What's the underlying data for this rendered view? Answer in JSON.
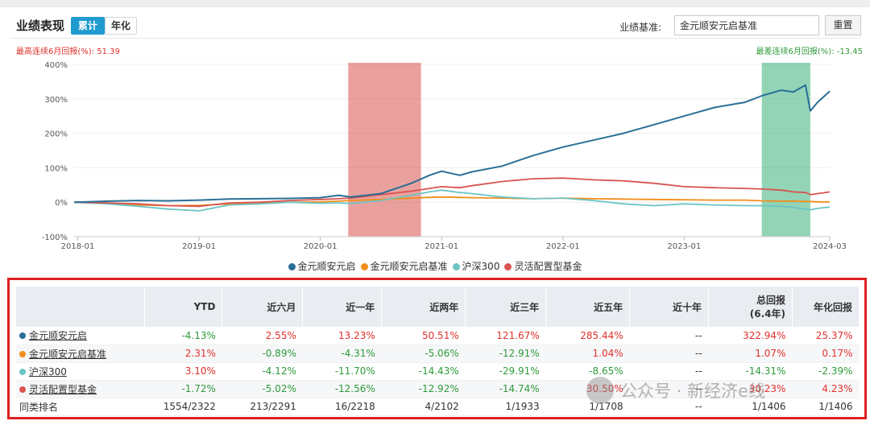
{
  "header": {
    "title": "业绩表现",
    "tab_cumulative": "累计",
    "tab_annualized": "年化",
    "benchmark_label": "业绩基准:",
    "benchmark_value": "金元顺安元启基准",
    "reset_label": "重置"
  },
  "stats": {
    "max_consecutive": "最高连续6月回报(%): 51.39",
    "min_consecutive": "最差连续6月回报(%): -13.45"
  },
  "colors": {
    "fund": "#2a6f97",
    "benchmark": "#f28e1c",
    "csi300": "#6cc4c4",
    "peer": "#d9534f",
    "highlight_red": "#d9534f",
    "highlight_green": "#3ab07a"
  },
  "chart_data": {
    "type": "line",
    "ylim": [
      -100,
      400
    ],
    "yticks": [
      "400%",
      "300%",
      "200%",
      "100%",
      "0%",
      "-100%"
    ],
    "ytick_values": [
      400,
      300,
      200,
      100,
      0,
      -100
    ],
    "xticks": [
      "2018-01",
      "2019-01",
      "2020-01",
      "2021-01",
      "2022-01",
      "2023-01",
      "2024-03"
    ],
    "xtick_values": [
      2018.0,
      2019.0,
      2020.0,
      2021.0,
      2022.0,
      2023.0,
      2024.2
    ],
    "x_range": [
      2017.97,
      2024.2
    ],
    "highlight_bands": [
      {
        "from": 2020.23,
        "to": 2020.83,
        "color": "red"
      },
      {
        "from": 2023.64,
        "to": 2024.04,
        "color": "green"
      }
    ],
    "x": [
      2017.97,
      2018.25,
      2018.5,
      2018.75,
      2019.0,
      2019.25,
      2019.5,
      2019.75,
      2020.0,
      2020.15,
      2020.25,
      2020.5,
      2020.75,
      2020.9,
      2021.0,
      2021.15,
      2021.25,
      2021.5,
      2021.75,
      2022.0,
      2022.25,
      2022.5,
      2022.75,
      2023.0,
      2023.25,
      2023.5,
      2023.65,
      2023.8,
      2023.9,
      2024.0,
      2024.04,
      2024.1,
      2024.2
    ],
    "series": [
      {
        "name": "金元顺安元启",
        "color": "#2a6f97",
        "values": [
          0,
          3,
          5,
          4,
          6,
          9,
          10,
          11,
          13,
          20,
          15,
          25,
          55,
          78,
          90,
          78,
          88,
          105,
          135,
          160,
          180,
          200,
          225,
          250,
          275,
          290,
          310,
          325,
          320,
          340,
          265,
          290,
          322
        ]
      },
      {
        "name": "金元顺安元启基准",
        "color": "#f28e1c",
        "values": [
          0,
          -3,
          -8,
          -10,
          -9,
          -5,
          -3,
          0,
          1,
          3,
          5,
          8,
          12,
          14,
          15,
          14,
          13,
          12,
          10,
          12,
          10,
          9,
          8,
          7,
          6,
          6,
          4,
          3,
          3,
          2,
          2,
          1,
          1
        ]
      },
      {
        "name": "沪深300",
        "color": "#6cc4c4",
        "values": [
          0,
          -5,
          -12,
          -20,
          -25,
          -8,
          -5,
          0,
          -3,
          -2,
          -4,
          5,
          20,
          30,
          35,
          28,
          25,
          15,
          10,
          12,
          5,
          -5,
          -10,
          -5,
          -8,
          -10,
          -10,
          -12,
          -15,
          -20,
          -22,
          -18,
          -14
        ]
      },
      {
        "name": "灵活配置型基金",
        "color": "#d9534f",
        "values": [
          0,
          -2,
          -5,
          -10,
          -12,
          -2,
          0,
          5,
          8,
          10,
          12,
          22,
          32,
          40,
          45,
          42,
          48,
          60,
          68,
          70,
          65,
          62,
          55,
          45,
          42,
          40,
          38,
          35,
          30,
          28,
          22,
          25,
          30
        ]
      }
    ]
  },
  "legend": [
    "金元顺安元启",
    "金元顺安元启基准",
    "沪深300",
    "灵活配置型基金"
  ],
  "table": {
    "columns": [
      "",
      "YTD",
      "近六月",
      "近一年",
      "近两年",
      "近三年",
      "近五年",
      "近十年",
      "总回报\n(6.4年)",
      "年化回报"
    ],
    "rows": [
      {
        "name": "金元顺安元启",
        "color": "#2a6f97",
        "cells": [
          "-4.13%",
          "2.55%",
          "13.23%",
          "50.51%",
          "121.67%",
          "285.44%",
          "--",
          "322.94%",
          "25.37%"
        ],
        "tone": [
          "neg",
          "pos",
          "pos",
          "pos",
          "pos",
          "pos",
          "neu",
          "pos",
          "pos"
        ]
      },
      {
        "name": "金元顺安元启基准",
        "color": "#f28e1c",
        "cells": [
          "2.31%",
          "-0.89%",
          "-4.31%",
          "-5.06%",
          "-12.91%",
          "1.04%",
          "--",
          "1.07%",
          "0.17%"
        ],
        "tone": [
          "pos",
          "neg",
          "neg",
          "neg",
          "neg",
          "pos",
          "neu",
          "pos",
          "pos"
        ]
      },
      {
        "name": "沪深300",
        "color": "#6cc4c4",
        "cells": [
          "3.10%",
          "-4.12%",
          "-11.70%",
          "-14.43%",
          "-29.91%",
          "-8.65%",
          "--",
          "-14.31%",
          "-2.39%"
        ],
        "tone": [
          "pos",
          "neg",
          "neg",
          "neg",
          "neg",
          "neg",
          "neu",
          "neg",
          "neg"
        ]
      },
      {
        "name": "灵活配置型基金",
        "color": "#d9534f",
        "cells": [
          "-1.72%",
          "-5.02%",
          "-12.56%",
          "-12.92%",
          "-14.74%",
          "30.50%",
          "--",
          "30.23%",
          "4.23%"
        ],
        "tone": [
          "neg",
          "neg",
          "neg",
          "neg",
          "neg",
          "pos",
          "neu",
          "pos",
          "pos"
        ]
      }
    ],
    "rank_row": {
      "name": "同类排名",
      "cells": [
        "1554/2322",
        "213/2291",
        "16/2218",
        "4/2102",
        "1/1933",
        "1/1708",
        "--",
        "1/1406",
        "1/1406"
      ]
    }
  },
  "watermark": "公众号 · 新经济e线"
}
